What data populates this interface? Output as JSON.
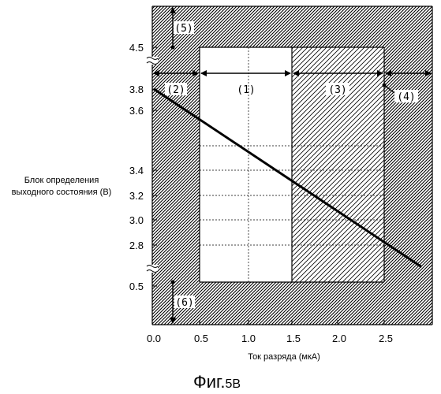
{
  "figure": {
    "y_label_line1": "Блок определения",
    "y_label_line2": "выходного состояния (В)",
    "x_label": "Ток разряда (мкА)",
    "caption_main": "Фиг.",
    "caption_num": "5В"
  },
  "chart_data": {
    "type": "line",
    "xlabel": "Ток разряда (мкА)",
    "ylabel": "Блок определения выходного состояния (В)",
    "x_ticks": [
      "0.0",
      "0.5",
      "1.0",
      "1.5",
      "2.0",
      "2.5"
    ],
    "y_ticks": [
      "0.5",
      "2.8",
      "3.0",
      "3.2",
      "3.4",
      "3.6",
      "3.8",
      "4.5"
    ],
    "xlim": [
      0,
      3
    ],
    "y_axis": "broken",
    "grid": true,
    "series": [
      {
        "x": [
          0.0,
          2.9
        ],
        "y": [
          3.8,
          2.66
        ]
      }
    ],
    "regions": [
      {
        "label": "(1)",
        "x_range": [
          0.5,
          1.5
        ],
        "fill": "white"
      },
      {
        "label": "(2)",
        "x_range": [
          0.0,
          0.5
        ],
        "fill": "hatched"
      },
      {
        "label": "(3)",
        "x_range": [
          1.5,
          2.5
        ],
        "fill": "light-hatched"
      },
      {
        "label": "(4)",
        "x_range": [
          2.5,
          3.0
        ],
        "fill": "hatched"
      },
      {
        "label": "(5)",
        "y_range": [
          4.5,
          5.0
        ],
        "fill": "hatched"
      },
      {
        "label": "(6)",
        "y_range": [
          0.0,
          0.5
        ],
        "fill": "hatched"
      }
    ]
  }
}
